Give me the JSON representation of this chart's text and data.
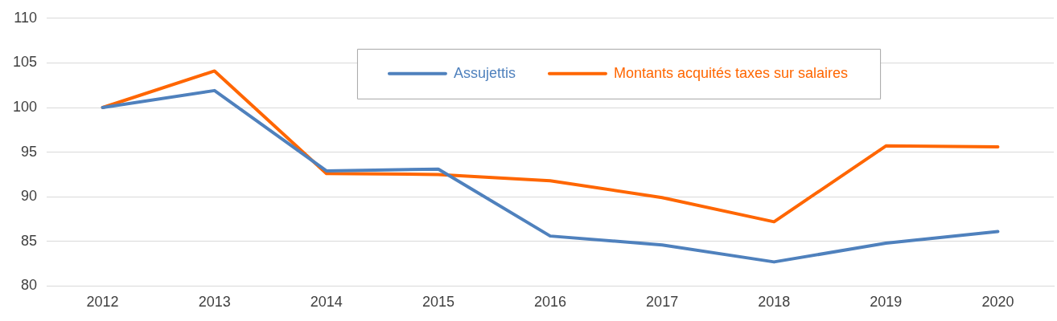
{
  "chart_data": {
    "type": "line",
    "categories": [
      "2012",
      "2013",
      "2014",
      "2015",
      "2016",
      "2017",
      "2018",
      "2019",
      "2020"
    ],
    "series": [
      {
        "name": "Assujettis",
        "color": "#4f81bd",
        "values": [
          100,
          101.9,
          92.9,
          93.1,
          85.6,
          84.6,
          82.7,
          84.8,
          86.1
        ]
      },
      {
        "name": "Montants acquités taxes sur salaires",
        "color": "#ff6600",
        "values": [
          100,
          104.1,
          92.6,
          92.5,
          91.8,
          89.9,
          87.2,
          95.7,
          95.6
        ]
      }
    ],
    "ylim": [
      80,
      110
    ],
    "yticks": [
      80,
      85,
      90,
      95,
      100,
      105,
      110
    ],
    "grid": "y",
    "legend": "top",
    "marker": "none",
    "line_style": "solid"
  }
}
